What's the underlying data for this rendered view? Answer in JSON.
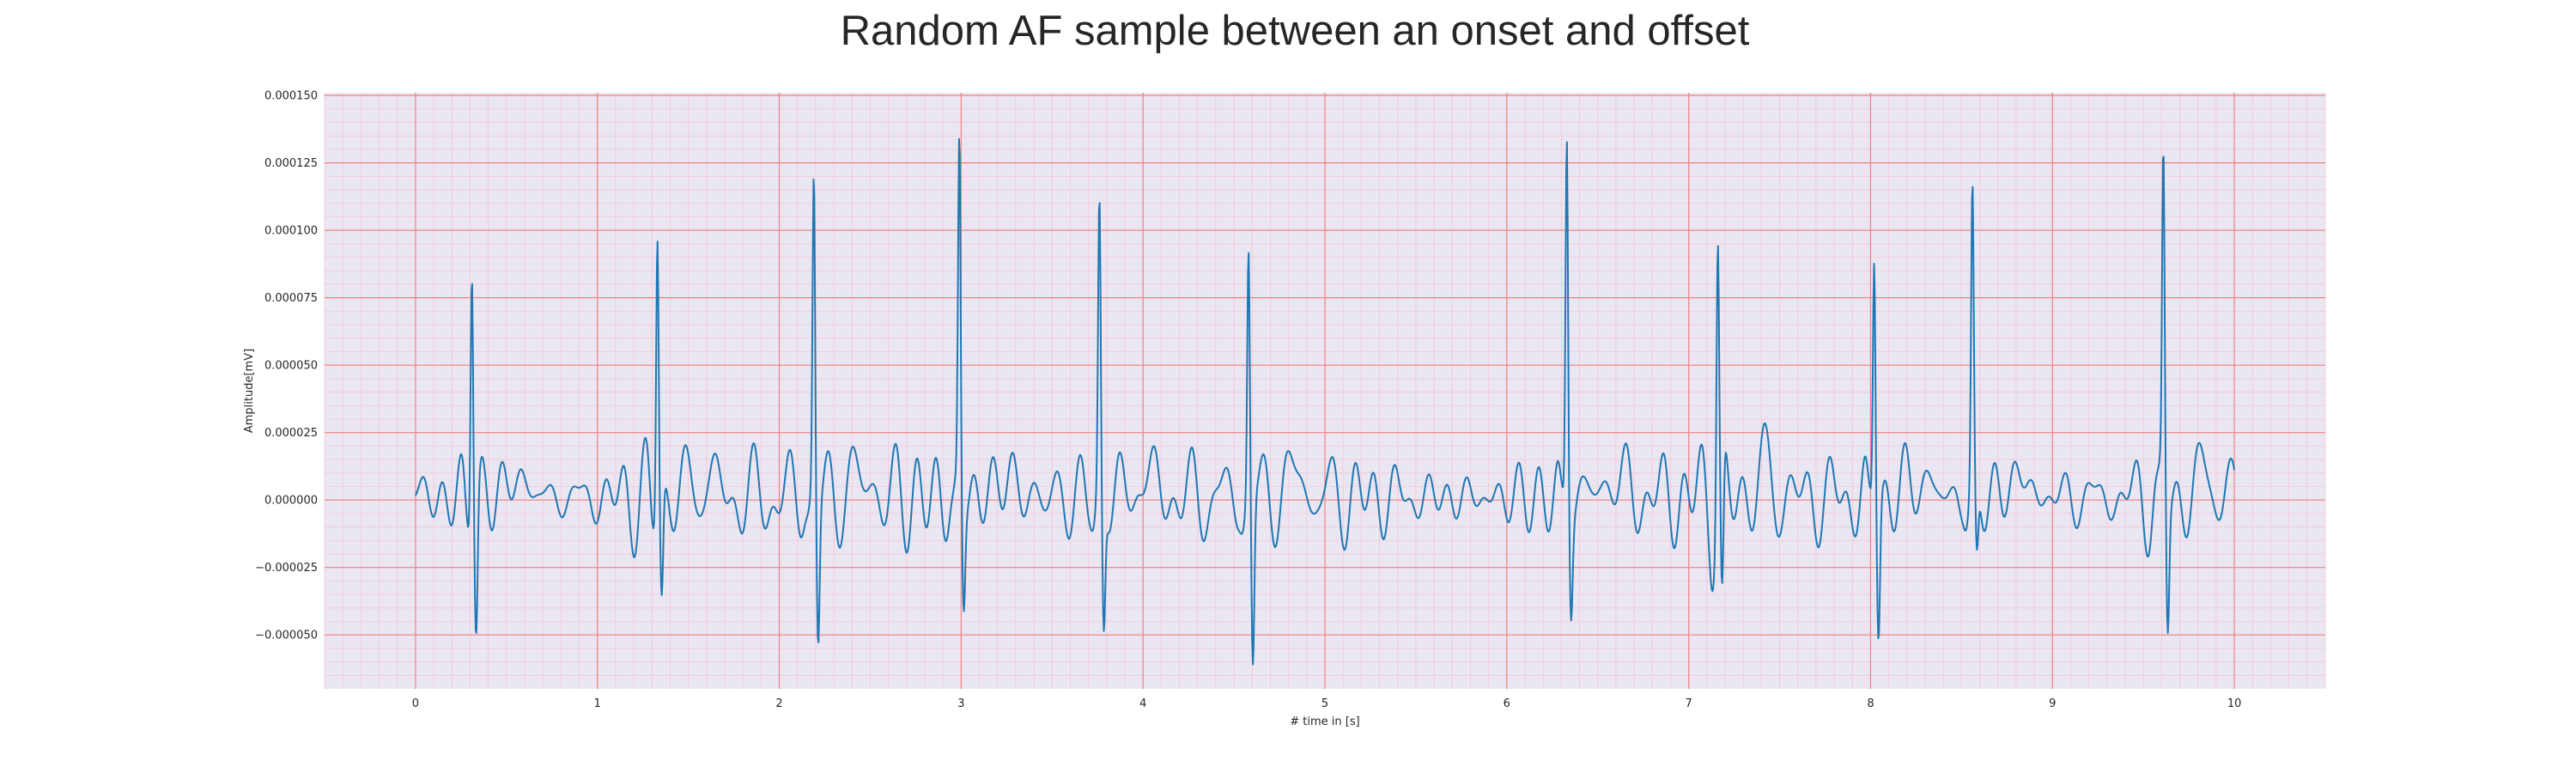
{
  "chart_data": {
    "type": "line",
    "title": "Random AF sample between an onset and offset",
    "xlabel": "# time in [s]",
    "ylabel": "Amplitude[mV]",
    "xlim": [
      -0.5,
      10.5
    ],
    "ylim": [
      -7e-05,
      0.000151
    ],
    "xticks": [
      0,
      1,
      2,
      3,
      4,
      5,
      6,
      7,
      8,
      9,
      10
    ],
    "xtick_labels": [
      "0",
      "1",
      "2",
      "3",
      "4",
      "5",
      "6",
      "7",
      "8",
      "9",
      "10"
    ],
    "yticks": [
      -5e-05,
      -2.5e-05,
      0.0,
      2.5e-05,
      5e-05,
      7.5e-05,
      0.0001,
      0.000125,
      0.00015
    ],
    "ytick_labels": [
      "−0.000050",
      "−0.000025",
      "0.000000",
      "0.000025",
      "0.000050",
      "0.000075",
      "0.000100",
      "0.000125",
      "0.000150"
    ],
    "grid": true,
    "colors": {
      "line": "#1f77b4",
      "background": "#eae7f2",
      "major_grid": "#f08080",
      "minor_grid": "#f4c6d2",
      "text": "#262626"
    },
    "series": [
      {
        "duration_s": 10.0,
        "baseline_amplitude": 2e-05,
        "beats": [
          {
            "t": 0.31,
            "peak": 0.0001,
            "trough": -4.7e-05
          },
          {
            "t": 1.33,
            "peak": 0.000106,
            "trough": -3.8e-05
          },
          {
            "t": 2.19,
            "peak": 0.000121,
            "trough": -5e-05
          },
          {
            "t": 2.99,
            "peak": 0.00013,
            "trough": -3.6e-05
          },
          {
            "t": 3.76,
            "peak": 0.000106,
            "trough": -4.8e-05
          },
          {
            "t": 4.58,
            "peak": 9.3e-05,
            "trough": -6.1e-05
          },
          {
            "t": 6.33,
            "peak": 0.000142,
            "trough": -3.2e-05
          },
          {
            "t": 7.16,
            "peak": 9.9e-05,
            "trough": -5.3e-05
          },
          {
            "t": 8.02,
            "peak": 9.5e-05,
            "trough": -4.6e-05
          },
          {
            "t": 8.56,
            "peak": 0.000107,
            "trough": -2.8e-05
          },
          {
            "t": 9.61,
            "peak": 0.000124,
            "trough": -4.6e-05
          }
        ]
      }
    ]
  }
}
